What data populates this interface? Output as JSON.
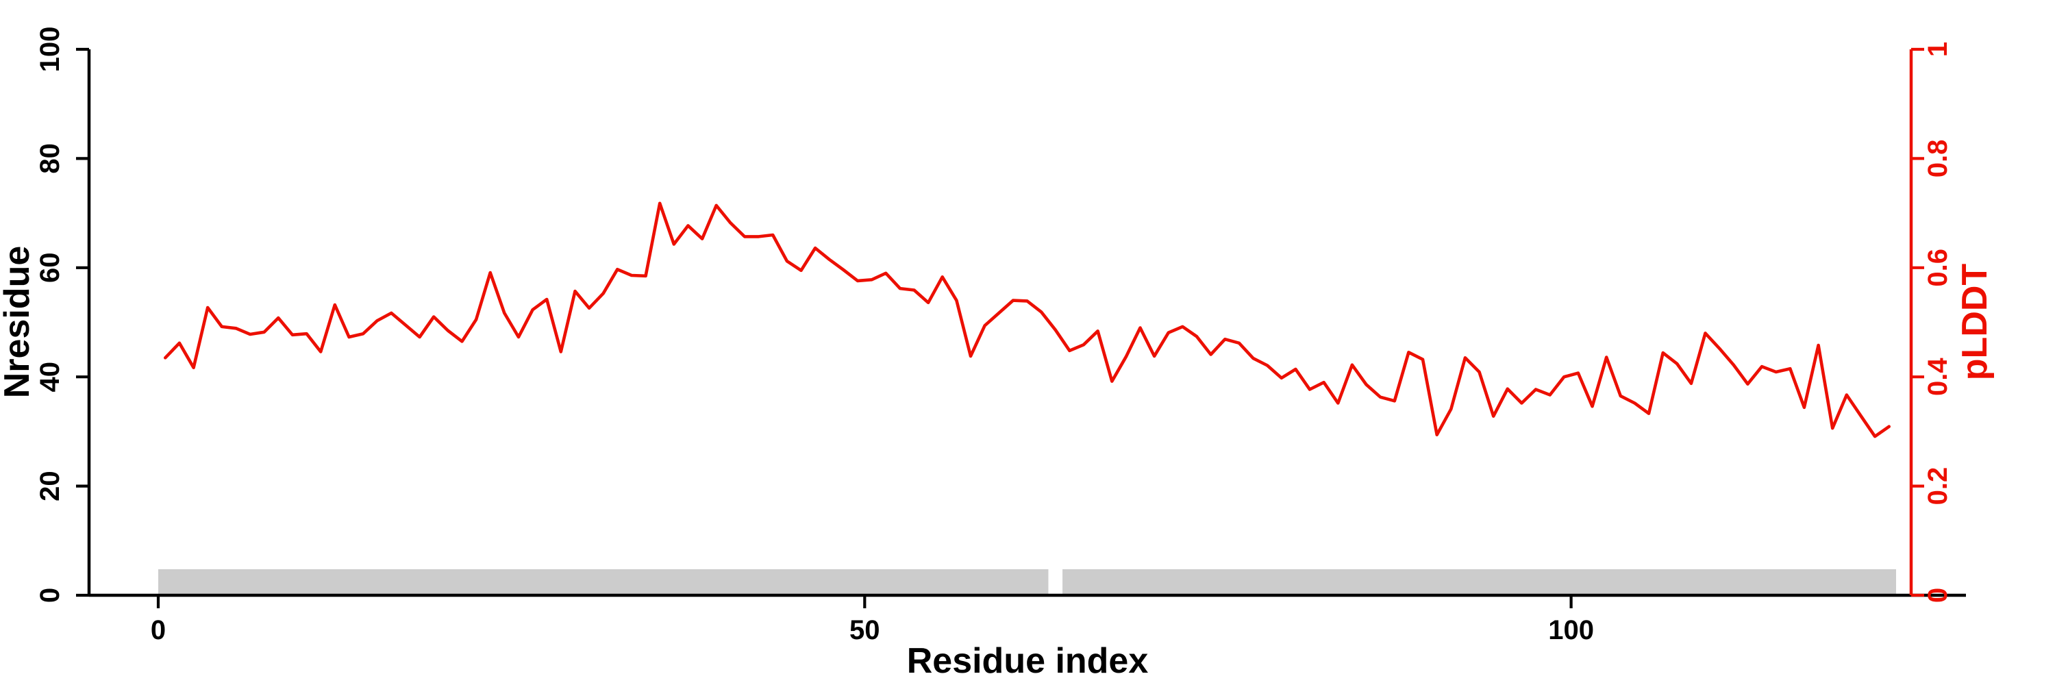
{
  "figure": {
    "background": "#ffffff",
    "colors": {
      "line": "#ec0f00",
      "right_axis": "#ec0f00",
      "axes": "#000000",
      "bar": "#cccccc",
      "text": "#000000"
    }
  },
  "chart_data": {
    "type": "line",
    "title": "",
    "xlabel": "Residue index",
    "ylabel_left": "Nresidue",
    "ylabel_right": "pLDDT",
    "x_axis_ticks": [
      "0",
      "50",
      "100"
    ],
    "left_axis_ticks": [
      "0",
      "20",
      "40",
      "60",
      "80",
      "100"
    ],
    "right_axis_ticks": [
      "0",
      "0.2",
      "0.4",
      "0.6",
      "0.8",
      "1"
    ],
    "xlim": [
      -5,
      129
    ],
    "ylim_left": [
      0,
      100
    ],
    "ylim_right": [
      0,
      1
    ],
    "grid": false,
    "legend": "none",
    "series": [
      {
        "name": "pLDDT",
        "axis": "right",
        "x_start": 1,
        "x_step": 1,
        "values": [
          0.435,
          0.462,
          0.417,
          0.527,
          0.492,
          0.489,
          0.478,
          0.482,
          0.508,
          0.477,
          0.479,
          0.446,
          0.532,
          0.473,
          0.479,
          0.503,
          0.517,
          0.495,
          0.473,
          0.51,
          0.485,
          0.465,
          0.505,
          0.591,
          0.517,
          0.473,
          0.523,
          0.542,
          0.446,
          0.557,
          0.526,
          0.553,
          0.597,
          0.586,
          0.585,
          0.718,
          0.643,
          0.677,
          0.653,
          0.714,
          0.682,
          0.657,
          0.657,
          0.66,
          0.612,
          0.595,
          0.636,
          0.615,
          0.596,
          0.576,
          0.578,
          0.59,
          0.562,
          0.559,
          0.536,
          0.583,
          0.54,
          0.438,
          0.494,
          0.517,
          0.54,
          0.539,
          0.519,
          0.486,
          0.448,
          0.459,
          0.484,
          0.392,
          0.437,
          0.49,
          0.438,
          0.481,
          0.492,
          0.474,
          0.441,
          0.469,
          0.462,
          0.434,
          0.421,
          0.398,
          0.414,
          0.377,
          0.39,
          0.352,
          0.422,
          0.386,
          0.363,
          0.356,
          0.445,
          0.432,
          0.294,
          0.341,
          0.435,
          0.409,
          0.328,
          0.378,
          0.352,
          0.377,
          0.367,
          0.4,
          0.407,
          0.346,
          0.436,
          0.365,
          0.352,
          0.333,
          0.444,
          0.424,
          0.388,
          0.48,
          0.452,
          0.422,
          0.387,
          0.419,
          0.409,
          0.415,
          0.344,
          0.458,
          0.306,
          0.367,
          0.329,
          0.291,
          0.309
        ]
      }
    ],
    "annotation_bar": {
      "description": "gray segment bar along x-axis",
      "color": "#cccccc",
      "segments": [
        {
          "from": 0,
          "to": 63
        },
        {
          "from": 64,
          "to": 123
        }
      ]
    }
  }
}
